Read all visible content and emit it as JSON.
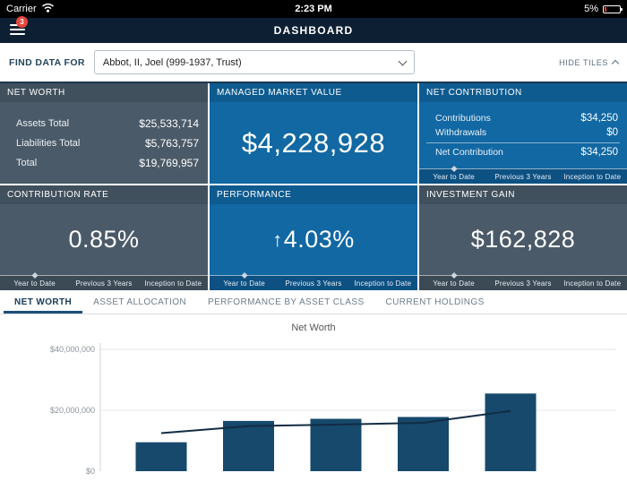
{
  "status_bar": {
    "carrier": "Carrier",
    "time": "2:23 PM",
    "battery": "5%"
  },
  "nav": {
    "title": "DASHBOARD",
    "menu_badge": "3"
  },
  "find_bar": {
    "label": "FIND DATA FOR",
    "selected_entity": "Abbot, II, Joel (999-1937, Trust)",
    "hide_tiles_label": "HIDE TILES"
  },
  "period_tabs": [
    "Year to Date",
    "Previous 3 Years",
    "Inception to Date"
  ],
  "tiles": {
    "net_worth": {
      "title": "NET WORTH",
      "rows": [
        {
          "label": "Assets Total",
          "value": "$25,533,714"
        },
        {
          "label": "Liabilities Total",
          "value": "$5,763,757"
        },
        {
          "label": "Total",
          "value": "$19,769,957"
        }
      ]
    },
    "managed_market_value": {
      "title": "MANAGED MARKET VALUE",
      "value": "$4,228,928"
    },
    "net_contribution": {
      "title": "NET CONTRIBUTION",
      "rows": [
        {
          "label": "Contributions",
          "value": "$34,250"
        },
        {
          "label": "Withdrawals",
          "value": "$0"
        },
        {
          "label": "Net Contribution",
          "value": "$34,250"
        }
      ]
    },
    "contribution_rate": {
      "title": "CONTRIBUTION RATE",
      "value": "0.85%"
    },
    "performance": {
      "title": "PERFORMANCE",
      "arrow": "↑",
      "value": "4.03%"
    },
    "investment_gain": {
      "title": "INVESTMENT GAIN",
      "value": "$162,828"
    }
  },
  "section_tabs": [
    {
      "label": "NET WORTH",
      "active": true
    },
    {
      "label": "ASSET ALLOCATION",
      "active": false
    },
    {
      "label": "PERFORMANCE BY ASSET CLASS",
      "active": false
    },
    {
      "label": "CURRENT HOLDINGS",
      "active": false
    }
  ],
  "chart_data": {
    "type": "bar",
    "title": "Net Worth",
    "x": [
      1,
      2,
      3,
      4,
      5
    ],
    "series": [
      {
        "name": "Net Worth bars",
        "type": "bar",
        "values": [
          9500000,
          16500000,
          17200000,
          17800000,
          25500000
        ]
      },
      {
        "name": "Net Worth trend line",
        "type": "line",
        "values": [
          12500000,
          14800000,
          15300000,
          15900000,
          19770000
        ]
      }
    ],
    "yticks": [
      {
        "label": "$40,000,000",
        "value": 40000000
      },
      {
        "label": "$20,000,000",
        "value": 20000000
      },
      {
        "label": "$0",
        "value": 0
      }
    ],
    "ylim": [
      0,
      40000000
    ],
    "grid": true,
    "legend": false
  },
  "colors": {
    "header_bg": "#0d2033",
    "tile_slate": "#4b5a68",
    "tile_blue": "#1168a3",
    "bar_fill": "#16496b",
    "line_stroke": "#132c43",
    "badge_red": "#e8463c",
    "active_tab_underline": "#1b4f79"
  }
}
